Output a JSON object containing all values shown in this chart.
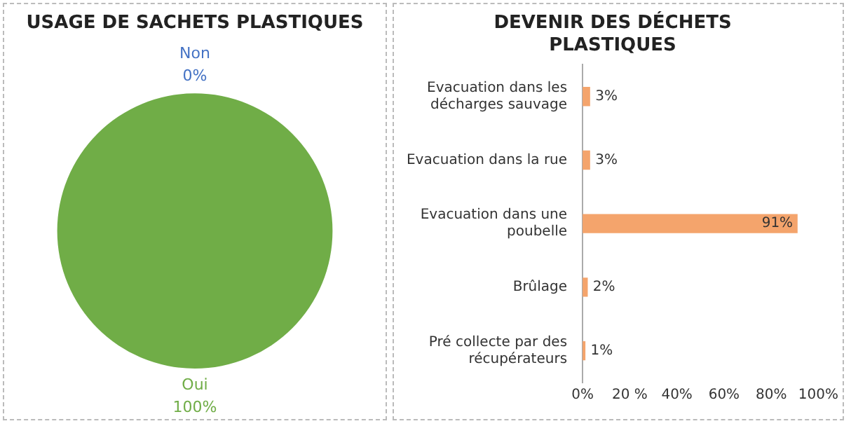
{
  "chart_data": [
    {
      "type": "pie",
      "title": "USAGE DE SACHETS PLASTIQUES",
      "categories": [
        "Non",
        "Oui"
      ],
      "values": [
        0,
        100
      ],
      "colors": [
        "#4472c4",
        "#70ad47"
      ],
      "value_labels": [
        "0%",
        "100%"
      ],
      "legend": false
    },
    {
      "type": "bar",
      "orientation": "horizontal",
      "title": "DEVENIR DES DÉCHETS PLASTIQUES",
      "categories": [
        "Evacuation dans les décharges sauvage",
        "Evacuation dans la rue",
        "Evacuation dans une poubelle",
        "Brûlage",
        "Pré collecte par des récupérateurs"
      ],
      "values": [
        3,
        3,
        91,
        2,
        1
      ],
      "color": "#f4a46c",
      "value_labels": [
        "3%",
        "3%",
        "91%",
        "2%",
        "1%"
      ],
      "xlim": [
        0,
        100
      ],
      "xticks": [
        {
          "value": 0,
          "label": "0%"
        },
        {
          "value": 20,
          "label": "20 %"
        },
        {
          "value": 40,
          "label": "40%"
        },
        {
          "value": 60,
          "label": "60%"
        },
        {
          "value": 80,
          "label": "80%"
        },
        {
          "value": 100,
          "label": "100%"
        }
      ],
      "grid": false,
      "legend": false
    }
  ]
}
